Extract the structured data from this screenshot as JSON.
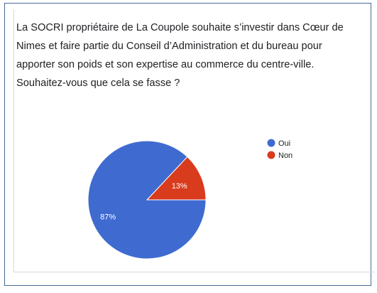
{
  "question": {
    "text": "La SOCRI propriétaire de La Coupole souhaite s’investir dans Cœur de Nimes et faire partie du Conseil d’Administration et du bureau pour apporter son poids et son expertise au commerce du centre-ville. Souhaitez-vous que cela se fasse ?"
  },
  "chart_data": {
    "type": "pie",
    "title": "",
    "legend_position": "right",
    "slices": [
      {
        "label": "Oui",
        "value": 87,
        "display": "87%",
        "color": "#3f6bd0"
      },
      {
        "label": "Non",
        "value": 13,
        "display": "13%",
        "color": "#d93b1d"
      }
    ]
  }
}
